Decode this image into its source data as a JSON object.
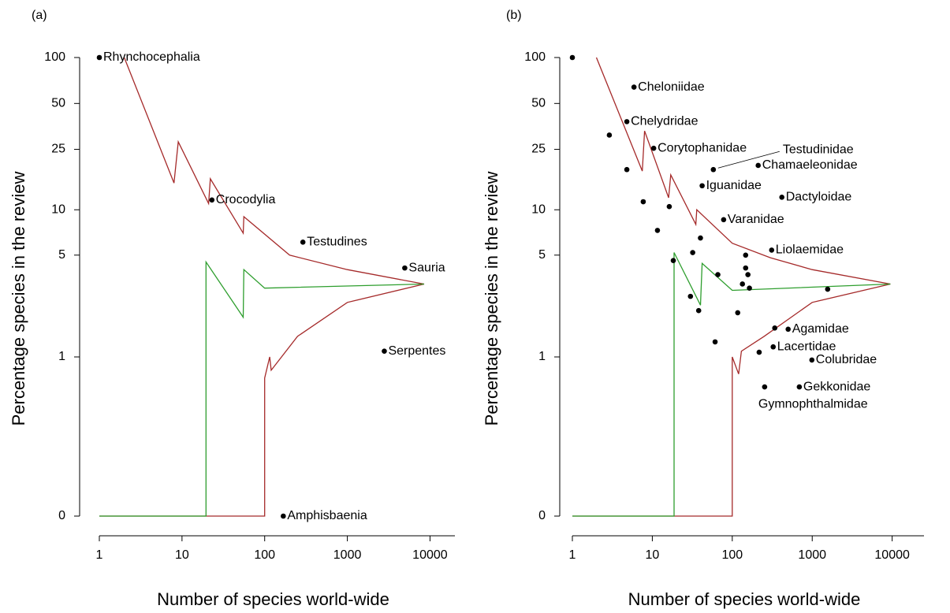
{
  "chart_data": [
    {
      "type": "scatter",
      "panel_label": "(a)",
      "xlabel": "Number of species world-wide",
      "ylabel": "Percentage species in the review",
      "xscale": "log",
      "xlim": [
        1,
        20000
      ],
      "ylim": [
        0,
        100
      ],
      "xticks": [
        1,
        10,
        100,
        1000,
        10000
      ],
      "yticks": [
        0,
        1,
        5,
        10,
        25,
        50,
        100
      ],
      "point_color": "#000000",
      "points": {
        "x": [
          1,
          23,
          290,
          4950,
          2800,
          168
        ],
        "y": [
          100,
          11.6,
          6.1,
          4.1,
          1.1,
          0
        ],
        "labels": [
          "Rhynchocephalia",
          "Crocodylia",
          "Testudines",
          "Sauria",
          "Serpentes",
          "Amphisbaenia"
        ]
      },
      "lines": [
        {
          "color": "#a52a2a",
          "x": [
            2,
            8,
            9,
            21,
            22,
            55,
            56,
            200,
            1000,
            8500
          ],
          "y": [
            100,
            15,
            28,
            11,
            16,
            7,
            9,
            5,
            4,
            3.2
          ]
        },
        {
          "color": "#a52a2a",
          "x": [
            1,
            100,
            100,
            115,
            120,
            250,
            1000,
            8500
          ],
          "y": [
            0,
            0,
            0.7,
            1,
            0.8,
            1.4,
            2.4,
            3.2
          ]
        },
        {
          "color": "#2e9e2e",
          "x": [
            1,
            19.5,
            19.5,
            55,
            56,
            100,
            8500
          ],
          "y": [
            0,
            0,
            4.5,
            1.9,
            4,
            3,
            3.2
          ]
        }
      ]
    },
    {
      "type": "scatter",
      "panel_label": "(b)",
      "xlabel": "Number of species world-wide",
      "ylabel": "Percentage species in the review",
      "xscale": "log",
      "xlim": [
        1,
        25000
      ],
      "ylim": [
        0,
        100
      ],
      "xticks": [
        1,
        10,
        100,
        1000,
        10000
      ],
      "yticks": [
        0,
        1,
        5,
        10,
        25,
        50,
        100
      ],
      "point_color": "#000000",
      "points": {
        "x": [
          1,
          5.9,
          4.8,
          2.9,
          10.4,
          4.8,
          58,
          211,
          42,
          417,
          7.7,
          16.3,
          78,
          11.6,
          40,
          311,
          32,
          147,
          18.3,
          66,
          147,
          157,
          134,
          164,
          1560,
          30,
          38,
          117,
          500,
          340,
          325,
          61,
          217,
          990,
          690,
          254
        ],
        "y": [
          100,
          64,
          38,
          31,
          25.4,
          18.4,
          18.4,
          19.6,
          14.4,
          12.1,
          11.3,
          10.5,
          8.6,
          7.3,
          6.5,
          5.4,
          5.2,
          5.0,
          4.6,
          3.7,
          4.1,
          3.7,
          3.2,
          3.0,
          2.95,
          2.64,
          2.11,
          2.04,
          1.57,
          1.6,
          1.18,
          1.28,
          1.08,
          0.95,
          0.6,
          0.6
        ],
        "labels": [
          null,
          "Cheloniidae",
          "Chelydridae",
          null,
          "Corytophanidae",
          null,
          "Testudinidae",
          "Chamaeleonidae",
          "Iguanidae",
          "Dactyloidae",
          null,
          null,
          "Varanidae",
          null,
          null,
          "Liolaemidae",
          null,
          null,
          null,
          null,
          null,
          null,
          null,
          null,
          null,
          null,
          null,
          null,
          "Agamidae",
          null,
          "Lacertidae",
          null,
          null,
          "Colubridae",
          "Gekkonidae",
          "Gymnophthalmidae"
        ]
      },
      "lines": [
        {
          "color": "#a52a2a",
          "x": [
            2,
            7.5,
            8,
            16,
            17,
            35,
            36,
            100,
            300,
            1000,
            9500
          ],
          "y": [
            100,
            18,
            33,
            12,
            17,
            8,
            10,
            6,
            4.8,
            4,
            3.2
          ]
        },
        {
          "color": "#a52a2a",
          "x": [
            1,
            100,
            100,
            120,
            130,
            250,
            1000,
            9500
          ],
          "y": [
            0,
            0,
            1,
            0.75,
            1.1,
            1.4,
            2.4,
            3.2
          ]
        },
        {
          "color": "#2e9e2e",
          "x": [
            1,
            18.7,
            18.7,
            40,
            42,
            100,
            9500
          ],
          "y": [
            0,
            0,
            5.2,
            2.3,
            4.4,
            2.9,
            3.2
          ]
        }
      ]
    }
  ]
}
